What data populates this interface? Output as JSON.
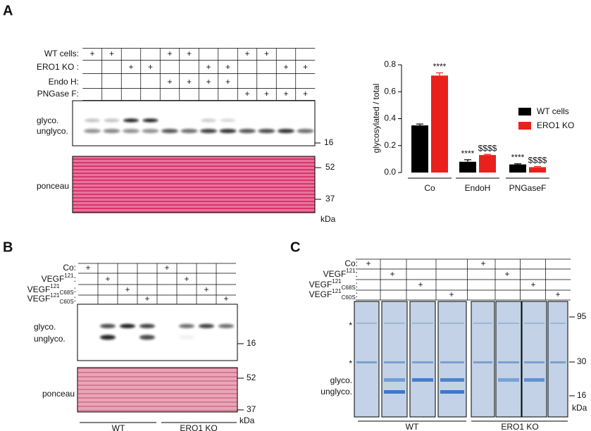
{
  "panel_labels": [
    "A",
    "B",
    "C"
  ],
  "blot_A": {
    "conditions": [
      {
        "label": "WT cells:",
        "marks": [
          "+",
          "+",
          null,
          null,
          "+",
          "+",
          null,
          null,
          "+",
          "+",
          null,
          null
        ]
      },
      {
        "label": "ERO1 KO :",
        "marks": [
          null,
          null,
          "+",
          "+",
          null,
          null,
          "+",
          "+",
          null,
          null,
          "+",
          "+"
        ]
      },
      {
        "label": "Endo H:",
        "marks": [
          null,
          null,
          null,
          null,
          "+",
          "+",
          "+",
          "+",
          null,
          null,
          null,
          null
        ]
      },
      {
        "label": "PNGase F:",
        "marks": [
          null,
          null,
          null,
          null,
          null,
          null,
          null,
          null,
          "+",
          "+",
          "+",
          "+"
        ]
      }
    ],
    "bands": [
      "glyco.",
      "unglyco."
    ],
    "ponceau": "ponceau",
    "markers": [
      "16",
      "52",
      "37"
    ],
    "unit": "kDa"
  },
  "chart_data": {
    "type": "bar",
    "ylabel": "glycosylated / total",
    "categories": [
      "Co",
      "EndoH",
      "PNGaseF"
    ],
    "series": [
      {
        "name": "WT cells",
        "color": "#000000",
        "values": [
          0.35,
          0.08,
          0.06
        ],
        "errors": [
          0.01,
          0.015,
          0.005
        ],
        "annotations": [
          null,
          "****",
          "****"
        ]
      },
      {
        "name": "ERO1 KO",
        "color": "#e8211d",
        "values": [
          0.72,
          0.13,
          0.04
        ],
        "errors": [
          0.02,
          0.005,
          0.005
        ],
        "annotations": [
          "****",
          "$$$$",
          "$$$$"
        ]
      }
    ],
    "ylim": [
      0,
      0.8
    ],
    "yticks": [
      {
        "value": 0,
        "label": "0.0"
      },
      0.2,
      0.4,
      0.6,
      0.8
    ]
  },
  "blot_B": {
    "conditions": [
      {
        "label": "Co:",
        "marks": [
          "+",
          null,
          null,
          null,
          "+",
          null,
          null,
          null
        ]
      },
      {
        "label": [
          "VEGF",
          "121",
          "",
          ":"
        ],
        "marks": [
          null,
          "+",
          null,
          null,
          null,
          "+",
          null,
          null
        ]
      },
      {
        "label": [
          "VEGF",
          "121",
          "C68S",
          ":"
        ],
        "marks": [
          null,
          null,
          "+",
          null,
          null,
          null,
          "+",
          null
        ]
      },
      {
        "label": [
          "VEGF",
          "121",
          "C60S",
          ":"
        ],
        "marks": [
          null,
          null,
          null,
          "+",
          null,
          null,
          null,
          "+"
        ]
      }
    ],
    "bands": [
      "glyco.",
      "unglyco."
    ],
    "ponceau": "ponceau",
    "markers": [
      "16",
      "52",
      "37"
    ],
    "unit": "kDa",
    "groups": [
      "WT",
      "ERO1 KO"
    ]
  },
  "gel_C": {
    "conditions": [
      {
        "label": "Co:",
        "marks": [
          "+",
          null,
          null,
          null,
          "+",
          null,
          null,
          null
        ]
      },
      {
        "label": [
          "VEGF",
          "121",
          "",
          ":"
        ],
        "marks": [
          null,
          "+",
          null,
          null,
          null,
          "+",
          null,
          null
        ]
      },
      {
        "label": [
          "VEGF",
          "121",
          "C68S",
          ":"
        ],
        "marks": [
          null,
          null,
          "+",
          null,
          null,
          null,
          "+",
          null
        ]
      },
      {
        "label": [
          "VEGF",
          "121",
          "C60S",
          ":"
        ],
        "marks": [
          null,
          null,
          null,
          "+",
          null,
          null,
          null,
          "+"
        ]
      }
    ],
    "asterisks": [
      "*",
      "*"
    ],
    "bands": [
      "glyco.",
      "unglyco."
    ],
    "markers": [
      "95",
      "30",
      "16"
    ],
    "unit": "kDa",
    "groups": [
      "WT",
      "ERO1 KO"
    ]
  }
}
